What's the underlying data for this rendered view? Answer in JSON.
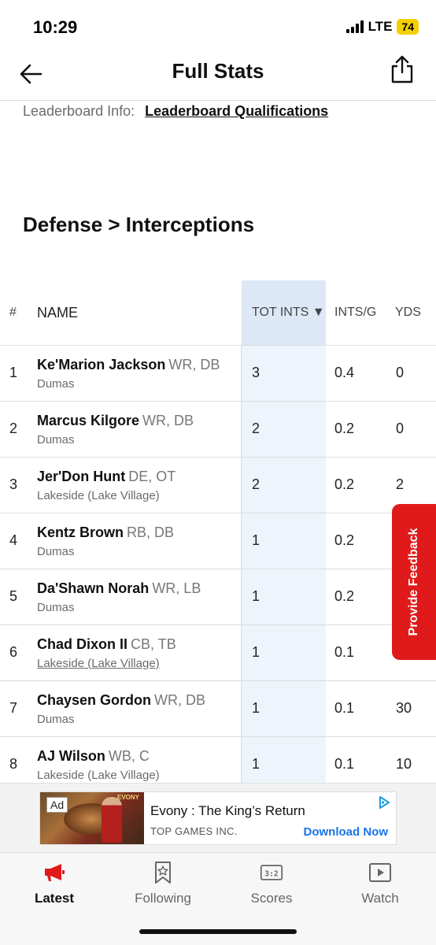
{
  "status": {
    "time": "10:29",
    "network": "LTE",
    "battery": "74"
  },
  "nav": {
    "title": "Full Stats",
    "back_icon": "arrow-left-icon",
    "share_icon": "share-icon"
  },
  "leaderboard": {
    "label": "Leaderboard Info:",
    "link": "Leaderboard Qualifications"
  },
  "section_title": "Defense > Interceptions",
  "table": {
    "headers": {
      "rank": "#",
      "name": "NAME",
      "tot_ints": "TOT INTS ▼",
      "ints_per_game": "INTS/G",
      "yds": "YDS"
    },
    "rows": [
      {
        "rank": "1",
        "name": "Ke'Marion Jackson",
        "pos": "WR, DB",
        "school": "Dumas",
        "tot": "3",
        "ipg": "0.4",
        "yds": "0"
      },
      {
        "rank": "2",
        "name": "Marcus Kilgore",
        "pos": "WR, DB",
        "school": "Dumas",
        "tot": "2",
        "ipg": "0.2",
        "yds": "0"
      },
      {
        "rank": "3",
        "name": "Jer'Don Hunt",
        "pos": "DE, OT",
        "school": "Lakeside (Lake Village)",
        "tot": "2",
        "ipg": "0.2",
        "yds": "2"
      },
      {
        "rank": "4",
        "name": "Kentz Brown",
        "pos": "RB, DB",
        "school": "Dumas",
        "tot": "1",
        "ipg": "0.2",
        "yds": ""
      },
      {
        "rank": "5",
        "name": "Da'Shawn Norah",
        "pos": "WR, LB",
        "school": "Dumas",
        "tot": "1",
        "ipg": "0.2",
        "yds": ""
      },
      {
        "rank": "6",
        "name": "Chad Dixon II",
        "pos": "CB, TB",
        "school": "Lakeside (Lake Village)",
        "tot": "1",
        "ipg": "0.1",
        "yds": ""
      },
      {
        "rank": "7",
        "name": "Chaysen Gordon",
        "pos": "WR, DB",
        "school": "Dumas",
        "tot": "1",
        "ipg": "0.1",
        "yds": "30"
      },
      {
        "rank": "8",
        "name": "AJ Wilson",
        "pos": "WB, C",
        "school": "Lakeside (Lake Village)",
        "tot": "1",
        "ipg": "0.1",
        "yds": "10"
      }
    ]
  },
  "feedback": {
    "label": "Provide Feedback"
  },
  "ad": {
    "badge": "Ad",
    "title": "Evony : The King’s Return",
    "publisher": "TOP GAMES INC.",
    "cta": "Download Now",
    "logo_text": "EVONY"
  },
  "tabs": [
    {
      "label": "Latest",
      "icon": "megaphone-icon",
      "active": true
    },
    {
      "label": "Following",
      "icon": "bookmark-star-icon",
      "active": false
    },
    {
      "label": "Scores",
      "icon": "scoreboard-icon",
      "active": false
    },
    {
      "label": "Watch",
      "icon": "play-icon",
      "active": false
    }
  ],
  "colors": {
    "accent": "#e01a1a",
    "highlight_col": "#eef4fc",
    "link": "#1a73e8",
    "battery": "#f5d000"
  }
}
